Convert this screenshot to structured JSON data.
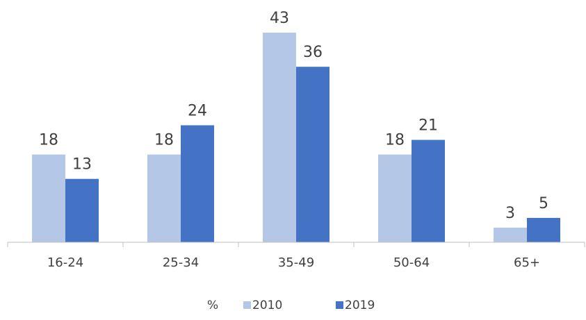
{
  "chart_data": {
    "type": "bar",
    "categories": [
      "16-24",
      "25-34",
      "35-49",
      "50-64",
      "65+"
    ],
    "series": [
      {
        "name": "2010",
        "color": "#b4c7e7",
        "values": [
          18,
          18,
          43,
          18,
          3
        ]
      },
      {
        "name": "2019",
        "color": "#4472c4",
        "values": [
          13,
          24,
          36,
          21,
          5
        ]
      }
    ],
    "ylim": [
      0,
      45
    ],
    "legend_title": "%",
    "legend": "bottom"
  }
}
